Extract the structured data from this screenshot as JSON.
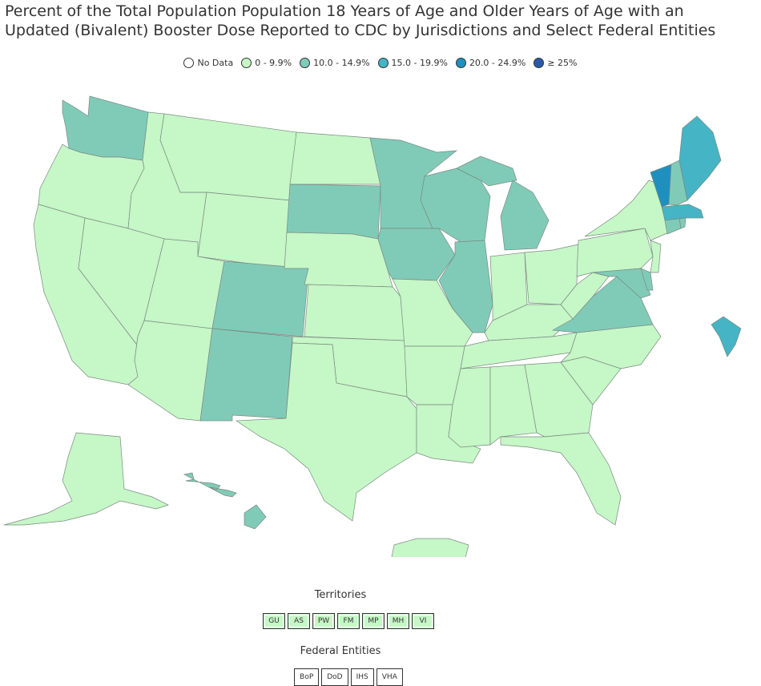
{
  "title": "Percent of the Total Population Population 18 Years of Age and Older Years of Age with an Updated (Bivalent) Booster Dose Reported to CDC by Jurisdictions and Select Federal Entities",
  "legend": [
    {
      "label": "No Data",
      "color": "#ffffff"
    },
    {
      "label": "0 - 9.9%",
      "color": "#c6f7c7"
    },
    {
      "label": "10.0 - 14.9%",
      "color": "#80cbb8"
    },
    {
      "label": "15.0 - 19.9%",
      "color": "#45b4c4"
    },
    {
      "label": "20.0 - 24.9%",
      "color": "#1f8fbf"
    },
    {
      "label": "≥ 25%",
      "color": "#2a59a8"
    }
  ],
  "territories_label": "Territories",
  "territories": [
    "GU",
    "AS",
    "PW",
    "FM",
    "MP",
    "MH",
    "VI"
  ],
  "federal_label": "Federal Entities",
  "federal_entities": [
    "BoP",
    "DoD",
    "IHS",
    "VHA"
  ]
}
